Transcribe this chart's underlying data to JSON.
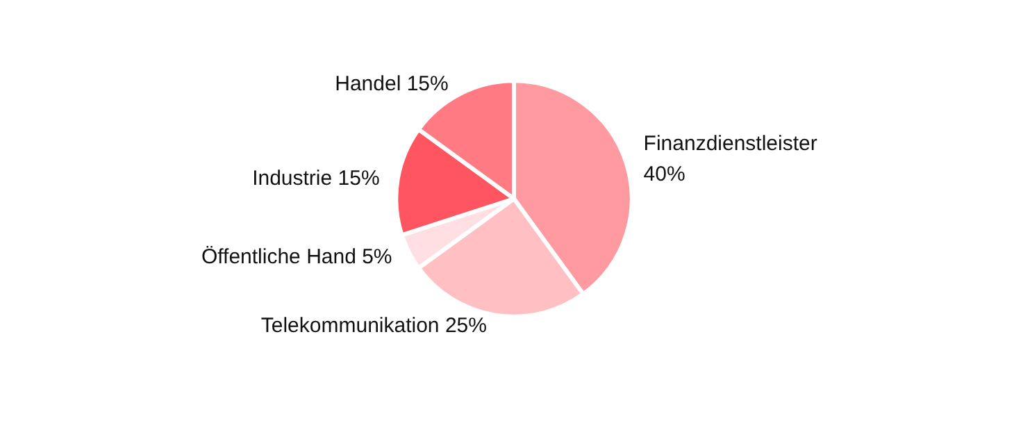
{
  "chart_data": {
    "type": "pie",
    "categories": [
      "Finanzdienstleister",
      "Telekommunikation",
      "Öffentliche Hand",
      "Industrie",
      "Handel"
    ],
    "values": [
      40,
      25,
      5,
      15,
      15
    ],
    "value_labels": [
      "40%",
      "25%",
      "5%",
      "15%",
      "15%"
    ],
    "colors": [
      "#ff9aa0",
      "#ffbfc3",
      "#ffdfe1",
      "#ff5560",
      "#ff7a82"
    ],
    "legend": false
  }
}
